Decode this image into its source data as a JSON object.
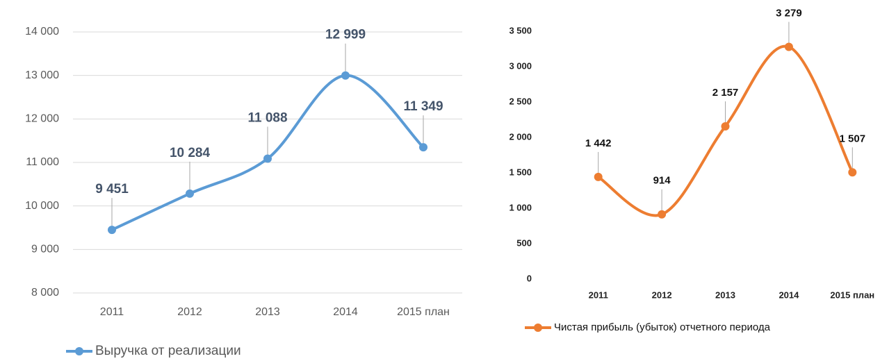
{
  "chart_data": [
    {
      "type": "line",
      "categories": [
        "2011",
        "2012",
        "2013",
        "2014",
        "2015 план"
      ],
      "series": [
        {
          "name": "Выручка от реализации",
          "color": "#5b9bd5",
          "values": [
            9451,
            10284,
            11088,
            12999,
            11349
          ],
          "value_labels": [
            "9 451",
            "10 284",
            "11 088",
            "12 999",
            "11 349"
          ]
        }
      ],
      "ylim": [
        8000,
        14000
      ],
      "yticks": [
        {
          "value": 8000,
          "label": "8 000"
        },
        {
          "value": 9000,
          "label": "9 000"
        },
        {
          "value": 10000,
          "label": "10 000"
        },
        {
          "value": 11000,
          "label": "11 000"
        },
        {
          "value": 12000,
          "label": "12 000"
        },
        {
          "value": 13000,
          "label": "13 000"
        },
        {
          "value": 14000,
          "label": "14 000"
        }
      ],
      "grid": true,
      "legend": "bottom-left"
    },
    {
      "type": "line",
      "categories": [
        "2011",
        "2012",
        "2013",
        "2014",
        "2015 план"
      ],
      "series": [
        {
          "name": "Чистая прибыль (убыток) отчетного периода",
          "color": "#ed7d31",
          "values": [
            1442,
            914,
            2157,
            3279,
            1507
          ],
          "value_labels": [
            "1 442",
            "914",
            "2 157",
            "3 279",
            "1 507"
          ]
        }
      ],
      "ylim": [
        0,
        3500
      ],
      "yticks": [
        0,
        500,
        {
          "value": 1000,
          "label": "1 000"
        },
        {
          "value": 1500,
          "label": "1 500"
        },
        {
          "value": 2000,
          "label": "2 000"
        },
        {
          "value": 2500,
          "label": "2 500"
        },
        {
          "value": 3000,
          "label": "3 000"
        },
        {
          "value": 3500,
          "label": "3 500"
        }
      ],
      "grid": false,
      "legend": "bottom-left"
    }
  ]
}
